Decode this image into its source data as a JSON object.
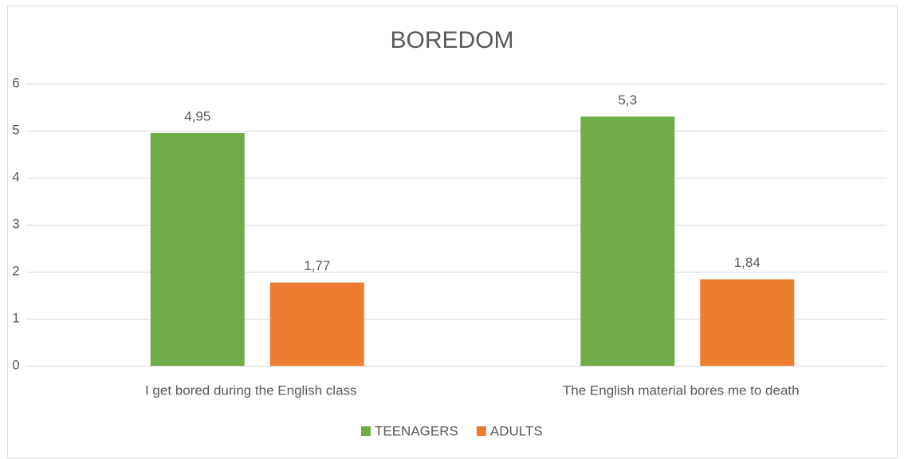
{
  "chart_data": {
    "type": "bar",
    "title": "BOREDOM",
    "categories": [
      "I get bored during the English class",
      "The English material bores me to death"
    ],
    "series": [
      {
        "name": "TEENAGERS",
        "color": "#70ad47",
        "values": [
          4.95,
          5.3
        ],
        "value_labels": [
          "4,95",
          "5,3"
        ]
      },
      {
        "name": "ADULTS",
        "color": "#ed7d31",
        "values": [
          1.77,
          1.84
        ],
        "value_labels": [
          "1,77",
          "1,84"
        ]
      }
    ],
    "ylim": [
      0,
      6
    ],
    "yticks": [
      0,
      1,
      2,
      3,
      4,
      5,
      6
    ],
    "grid": true,
    "legend": "bottom"
  }
}
